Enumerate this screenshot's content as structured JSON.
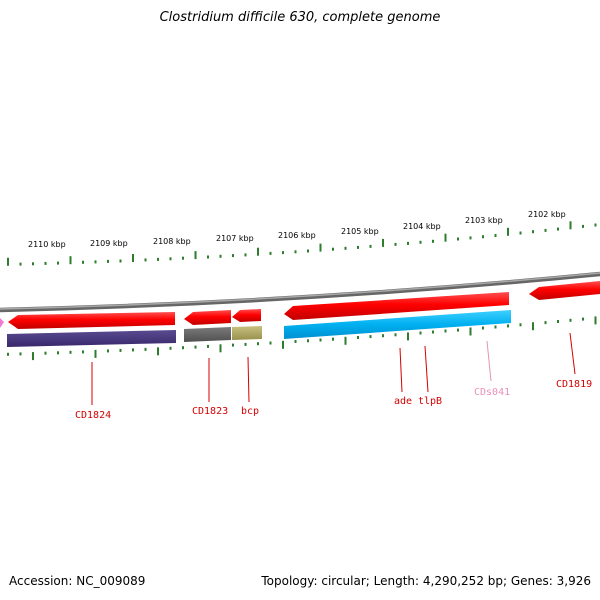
{
  "title": "Clostridium difficile 630, complete genome",
  "footer": {
    "accession": "Accession: NC_009089",
    "stats": "Topology: circular; Length: 4,290,252 bp; Genes: 3,926"
  },
  "colors": {
    "backbone": "#808080",
    "tick": "#2e7d2e",
    "forward_gene": "#ff0000",
    "reverse_gene": "#46337a",
    "label_red": "#d40000",
    "label_pink": "#e890b8"
  },
  "scale": {
    "labels": [
      "2110 kbp",
      "2109 kbp",
      "2108 kbp",
      "2107 kbp",
      "2106 kbp",
      "2105 kbp",
      "2104 kbp",
      "2103 kbp",
      "2102 kbp"
    ]
  },
  "gene_labels": [
    "CD1824",
    "CD1823",
    "bcp",
    "ade",
    "tlpB",
    "CDs041",
    "CD1819"
  ]
}
